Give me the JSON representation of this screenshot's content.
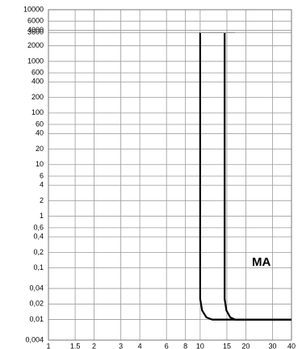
{
  "chart_data": {
    "type": "line",
    "annotation": "MA",
    "log_x": true,
    "log_y": true,
    "grid": true,
    "xlim": [
      1,
      40
    ],
    "xticks": [
      1,
      1.5,
      2,
      3,
      4,
      6,
      8,
      10,
      15,
      20,
      30,
      40
    ],
    "ylim": [
      0.004,
      10000
    ],
    "yticks": [
      10000,
      6000,
      4000,
      3600,
      2000,
      1000,
      600,
      400,
      200,
      100,
      60,
      40,
      20,
      10,
      6,
      4,
      2,
      1,
      {
        "value": 0.6,
        "label": "0,6"
      },
      {
        "value": 0.4,
        "label": "0,4"
      },
      {
        "value": 0.2,
        "label": "0,2"
      },
      {
        "value": 0.1,
        "label": "0,1"
      },
      {
        "value": 0.04,
        "label": "0,04"
      },
      {
        "value": 0.02,
        "label": "0,02"
      },
      {
        "value": 0.01,
        "label": "0,01"
      },
      {
        "value": 0.004,
        "label": "0,004"
      }
    ],
    "series": [
      {
        "color": "#000000",
        "x": [
          10,
          10,
          10.3,
          11,
          12,
          40
        ],
        "values": [
          3600,
          0.025,
          0.015,
          0.011,
          0.01,
          0.01
        ]
      },
      {
        "color": "#000000",
        "x": [
          14.5,
          14.5,
          14.9,
          15.8,
          17,
          40
        ],
        "values": [
          3600,
          0.025,
          0.015,
          0.011,
          0.01,
          0.01
        ]
      },
      {
        "color": "#999999",
        "x": [
          10,
          17
        ],
        "values": [
          3600,
          3600
        ]
      }
    ]
  }
}
